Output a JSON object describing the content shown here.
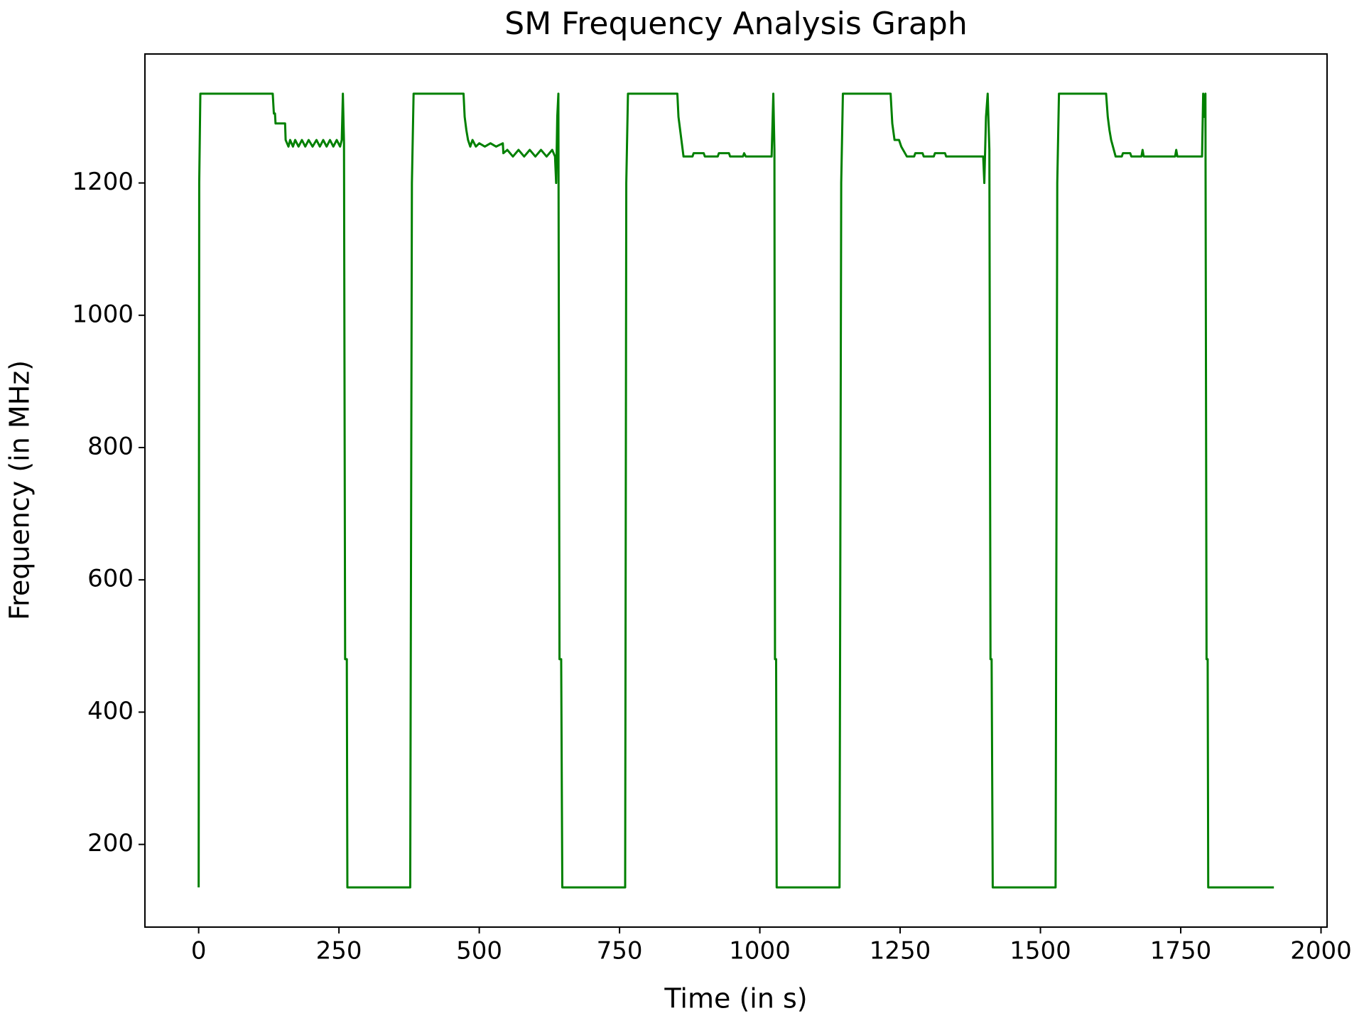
{
  "chart_data": {
    "type": "line",
    "title": "SM Frequency Analysis Graph",
    "xlabel": "Time (in s)",
    "ylabel": "Frequency (in MHz)",
    "xlim": [
      -95.75,
      2010.75
    ],
    "ylim": [
      75,
      1395
    ],
    "xticks": [
      0,
      250,
      500,
      750,
      1000,
      1250,
      1500,
      1750,
      2000
    ],
    "yticks": [
      200,
      400,
      600,
      800,
      1000,
      1200
    ],
    "grid": false,
    "series": [
      {
        "color": "#008000",
        "x": [
          0,
          1,
          3,
          132,
          134,
          136,
          137,
          154,
          155,
          160,
          163,
          168,
          172,
          178,
          184,
          190,
          196,
          203,
          210,
          216,
          222,
          228,
          234,
          240,
          246,
          252,
          255,
          257,
          259,
          261,
          264,
          265,
          377,
          380,
          383,
          472,
          474,
          477,
          480,
          484,
          488,
          494,
          500,
          510,
          520,
          530,
          542,
          543,
          550,
          560,
          570,
          580,
          590,
          600,
          610,
          620,
          630,
          635,
          637,
          639,
          641,
          643,
          646,
          648,
          760,
          762,
          765,
          853,
          855,
          858,
          864,
          880,
          882,
          900,
          902,
          925,
          927,
          945,
          947,
          970,
          972,
          975,
          1021,
          1024,
          1026,
          1027,
          1029,
          1030,
          1142,
          1145,
          1148,
          1233,
          1236,
          1240,
          1248,
          1252,
          1262,
          1275,
          1277,
          1290,
          1292,
          1310,
          1312,
          1330,
          1332,
          1398,
          1400,
          1403,
          1406,
          1409,
          1411,
          1413,
          1415,
          1527,
          1530,
          1533,
          1617,
          1620,
          1623,
          1626,
          1634,
          1645,
          1647,
          1660,
          1662,
          1680,
          1682,
          1684,
          1740,
          1742,
          1744,
          1788,
          1790,
          1792,
          1794,
          1796,
          1798,
          1799,
          1916
        ],
        "values": [
          135,
          1200,
          1335,
          1335,
          1305,
          1305,
          1290,
          1290,
          1265,
          1255,
          1265,
          1255,
          1265,
          1255,
          1265,
          1255,
          1265,
          1255,
          1265,
          1255,
          1265,
          1255,
          1265,
          1255,
          1265,
          1255,
          1265,
          1335,
          1260,
          480,
          480,
          135,
          135,
          1200,
          1335,
          1335,
          1300,
          1280,
          1265,
          1255,
          1265,
          1255,
          1260,
          1255,
          1260,
          1255,
          1260,
          1245,
          1250,
          1240,
          1250,
          1240,
          1250,
          1240,
          1250,
          1240,
          1250,
          1240,
          1200,
          1300,
          1335,
          480,
          480,
          135,
          135,
          1200,
          1335,
          1335,
          1300,
          1280,
          1240,
          1240,
          1245,
          1245,
          1240,
          1240,
          1245,
          1245,
          1240,
          1240,
          1245,
          1240,
          1240,
          1335,
          1250,
          480,
          480,
          135,
          135,
          1200,
          1335,
          1335,
          1290,
          1265,
          1265,
          1255,
          1240,
          1240,
          1245,
          1245,
          1240,
          1240,
          1245,
          1245,
          1240,
          1240,
          1200,
          1300,
          1335,
          1250,
          480,
          480,
          135,
          135,
          1200,
          1335,
          1335,
          1300,
          1280,
          1265,
          1240,
          1240,
          1245,
          1245,
          1240,
          1240,
          1250,
          1240,
          1240,
          1250,
          1240,
          1240,
          1335,
          1300,
          1335,
          480,
          480,
          135,
          135
        ]
      }
    ]
  }
}
